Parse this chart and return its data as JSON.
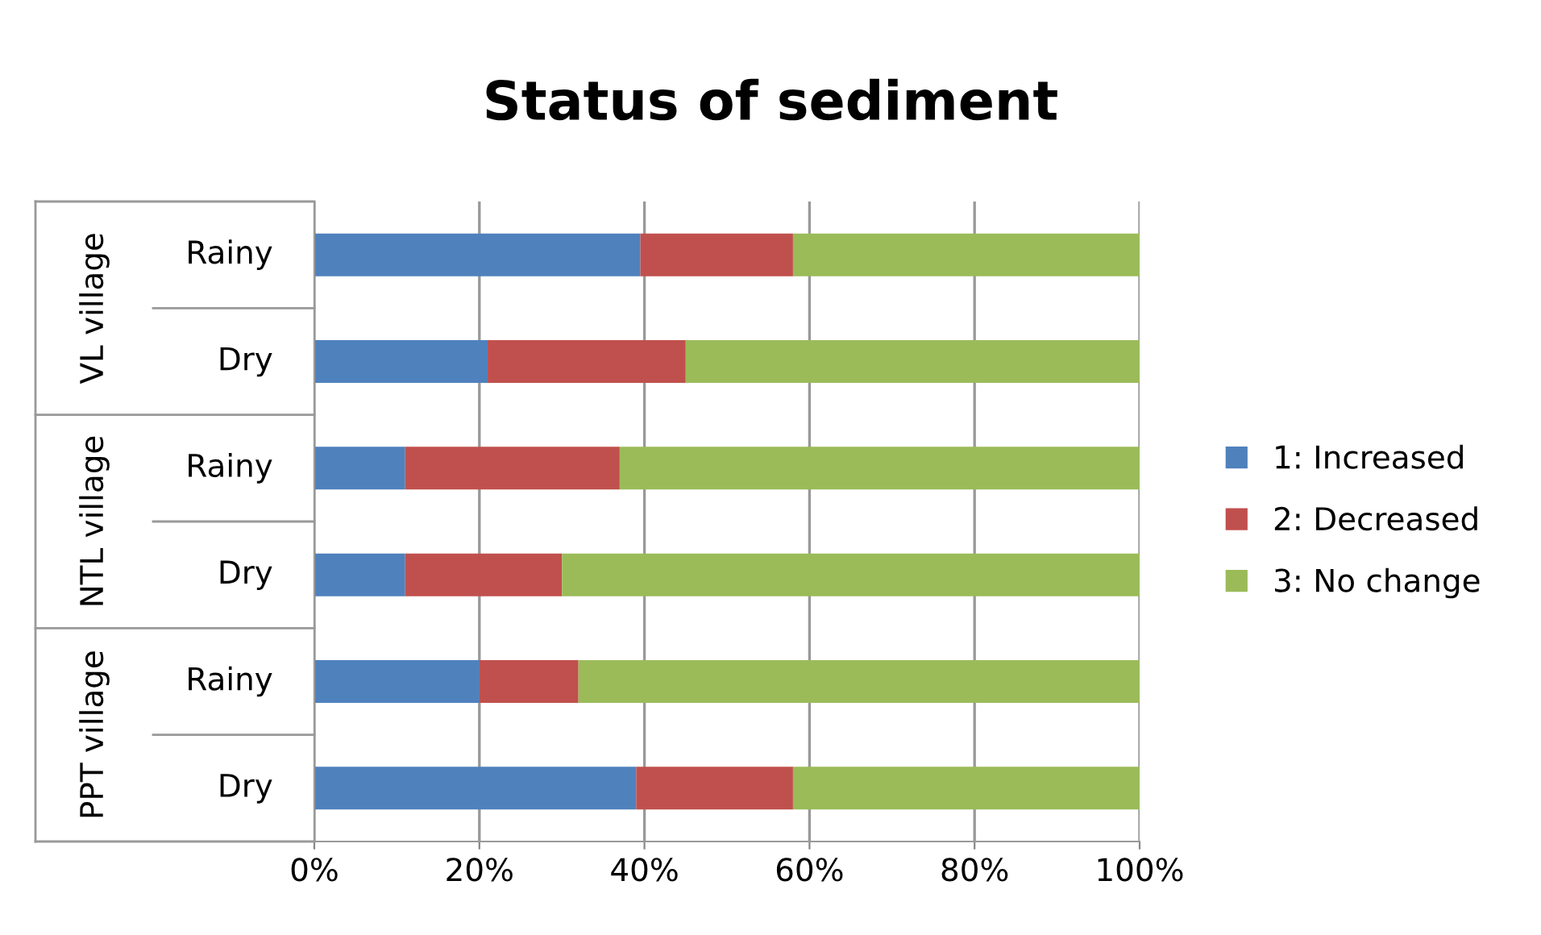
{
  "chart_data": {
    "type": "bar",
    "title": "Status of sediment",
    "orientation": "horizontal",
    "stacked": true,
    "categories": [
      "Rainy",
      "Dry",
      "Rainy",
      "Dry",
      "Rainy",
      "Dry"
    ],
    "annotations": [
      "VL village",
      "NTL village",
      "PPT village"
    ],
    "series": [
      {
        "name": "1: Increased",
        "color": "#4f81bd",
        "values": [
          39.5,
          21,
          11,
          11,
          20,
          39
        ]
      },
      {
        "name": "2: Decreased",
        "color": "#c0504d",
        "values": [
          18.5,
          24,
          26,
          19,
          12,
          19
        ]
      },
      {
        "name": "3: No change",
        "color": "#9bbb59",
        "values": [
          42,
          55,
          63,
          70,
          68,
          42
        ]
      }
    ],
    "xlim": [
      0,
      100
    ],
    "xticks": [
      {
        "value": 0,
        "label": "0%"
      },
      {
        "value": 20,
        "label": "20%"
      },
      {
        "value": 40,
        "label": "40%"
      },
      {
        "value": 60,
        "label": "60%"
      },
      {
        "value": 80,
        "label": "80%"
      },
      {
        "value": 100,
        "label": "100%"
      }
    ],
    "grid": "x",
    "legend": "right"
  }
}
